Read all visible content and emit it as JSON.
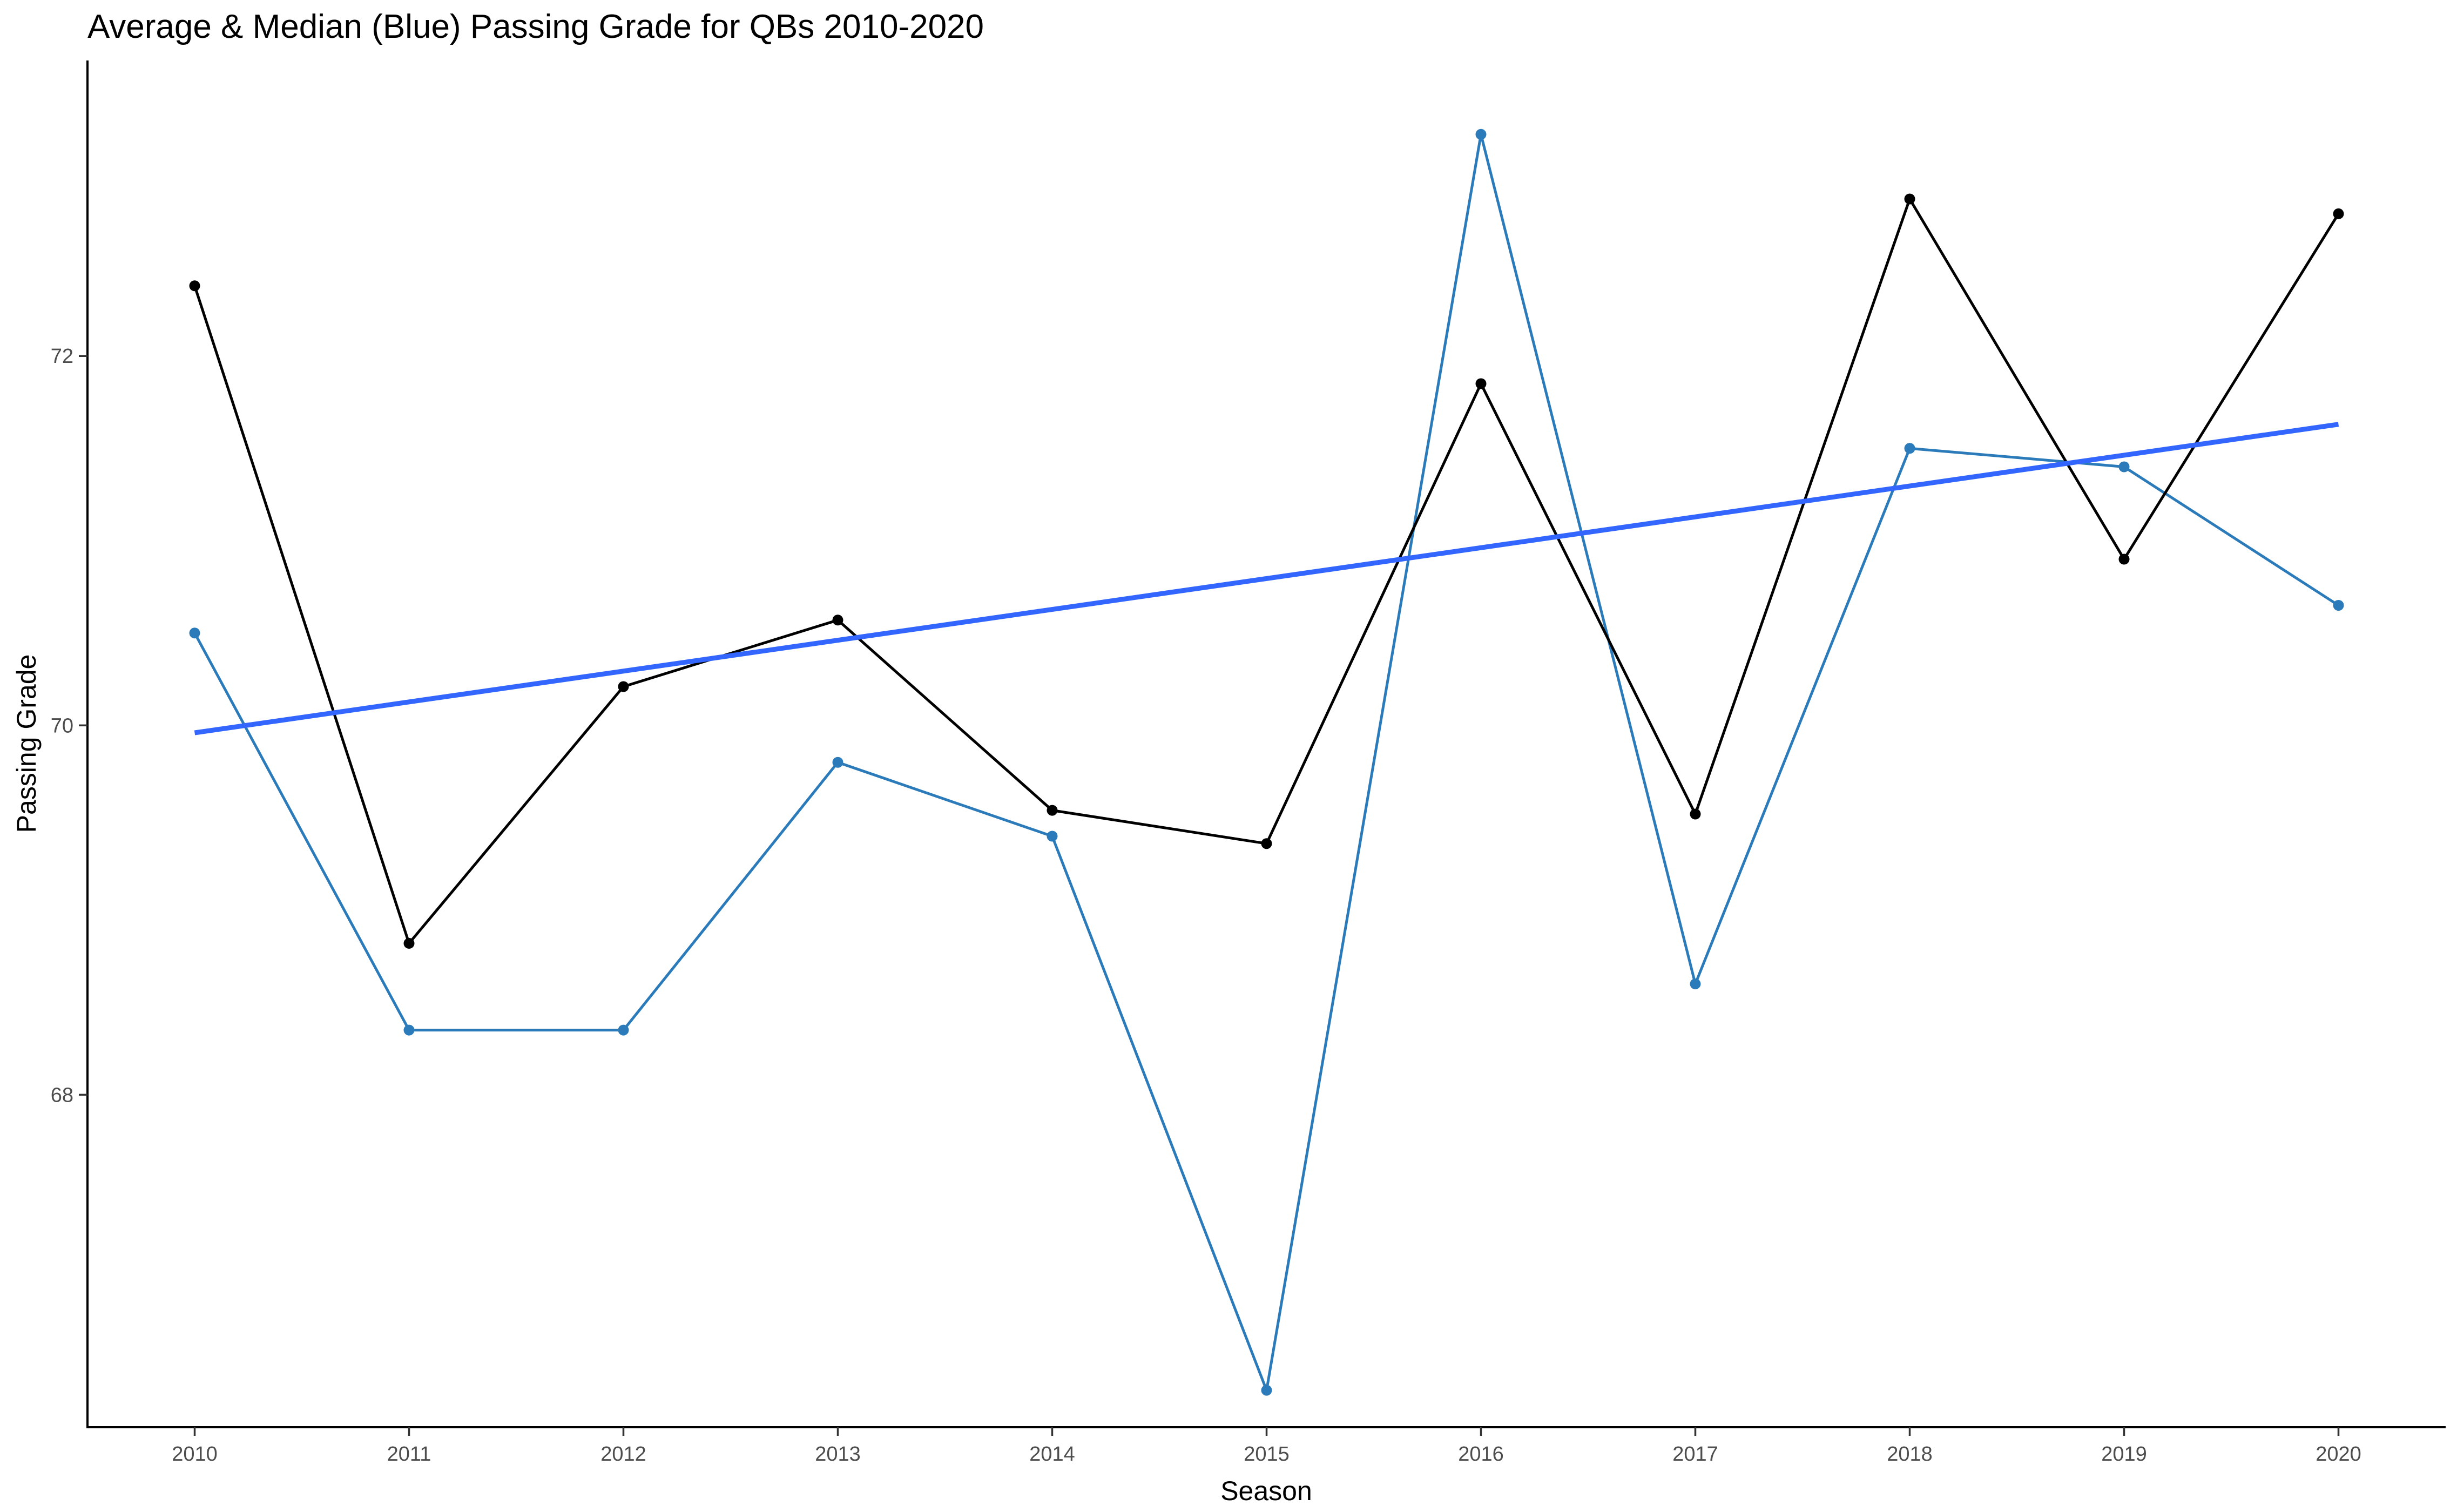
{
  "chart_data": {
    "type": "line",
    "title": "Average & Median (Blue) Passing Grade for QBs 2010-2020",
    "xlabel": "Season",
    "ylabel": "Passing Grade",
    "x": [
      2010,
      2011,
      2012,
      2013,
      2014,
      2015,
      2016,
      2017,
      2018,
      2019,
      2020
    ],
    "x_ticks": [
      "2010",
      "2011",
      "2012",
      "2013",
      "2014",
      "2015",
      "2016",
      "2017",
      "2018",
      "2019",
      "2020"
    ],
    "y_ticks": [
      "68",
      "70",
      "72"
    ],
    "xlim": [
      2009.5,
      2020.5
    ],
    "ylim": [
      66.2,
      73.6
    ],
    "grid": false,
    "legend": "none",
    "series": [
      {
        "color": "#000000",
        "values": [
          72.38,
          68.82,
          70.21,
          70.57,
          69.54,
          69.36,
          71.85,
          69.52,
          72.85,
          70.9,
          72.77
        ]
      },
      {
        "color": "#2b7bba",
        "values": [
          70.5,
          68.35,
          68.35,
          69.8,
          69.4,
          66.4,
          73.2,
          68.6,
          71.5,
          71.4,
          70.65
        ]
      }
    ],
    "trend_line": {
      "color": "#3366ff",
      "x": [
        2010,
        2020
      ],
      "values": [
        69.96,
        71.63
      ]
    }
  }
}
